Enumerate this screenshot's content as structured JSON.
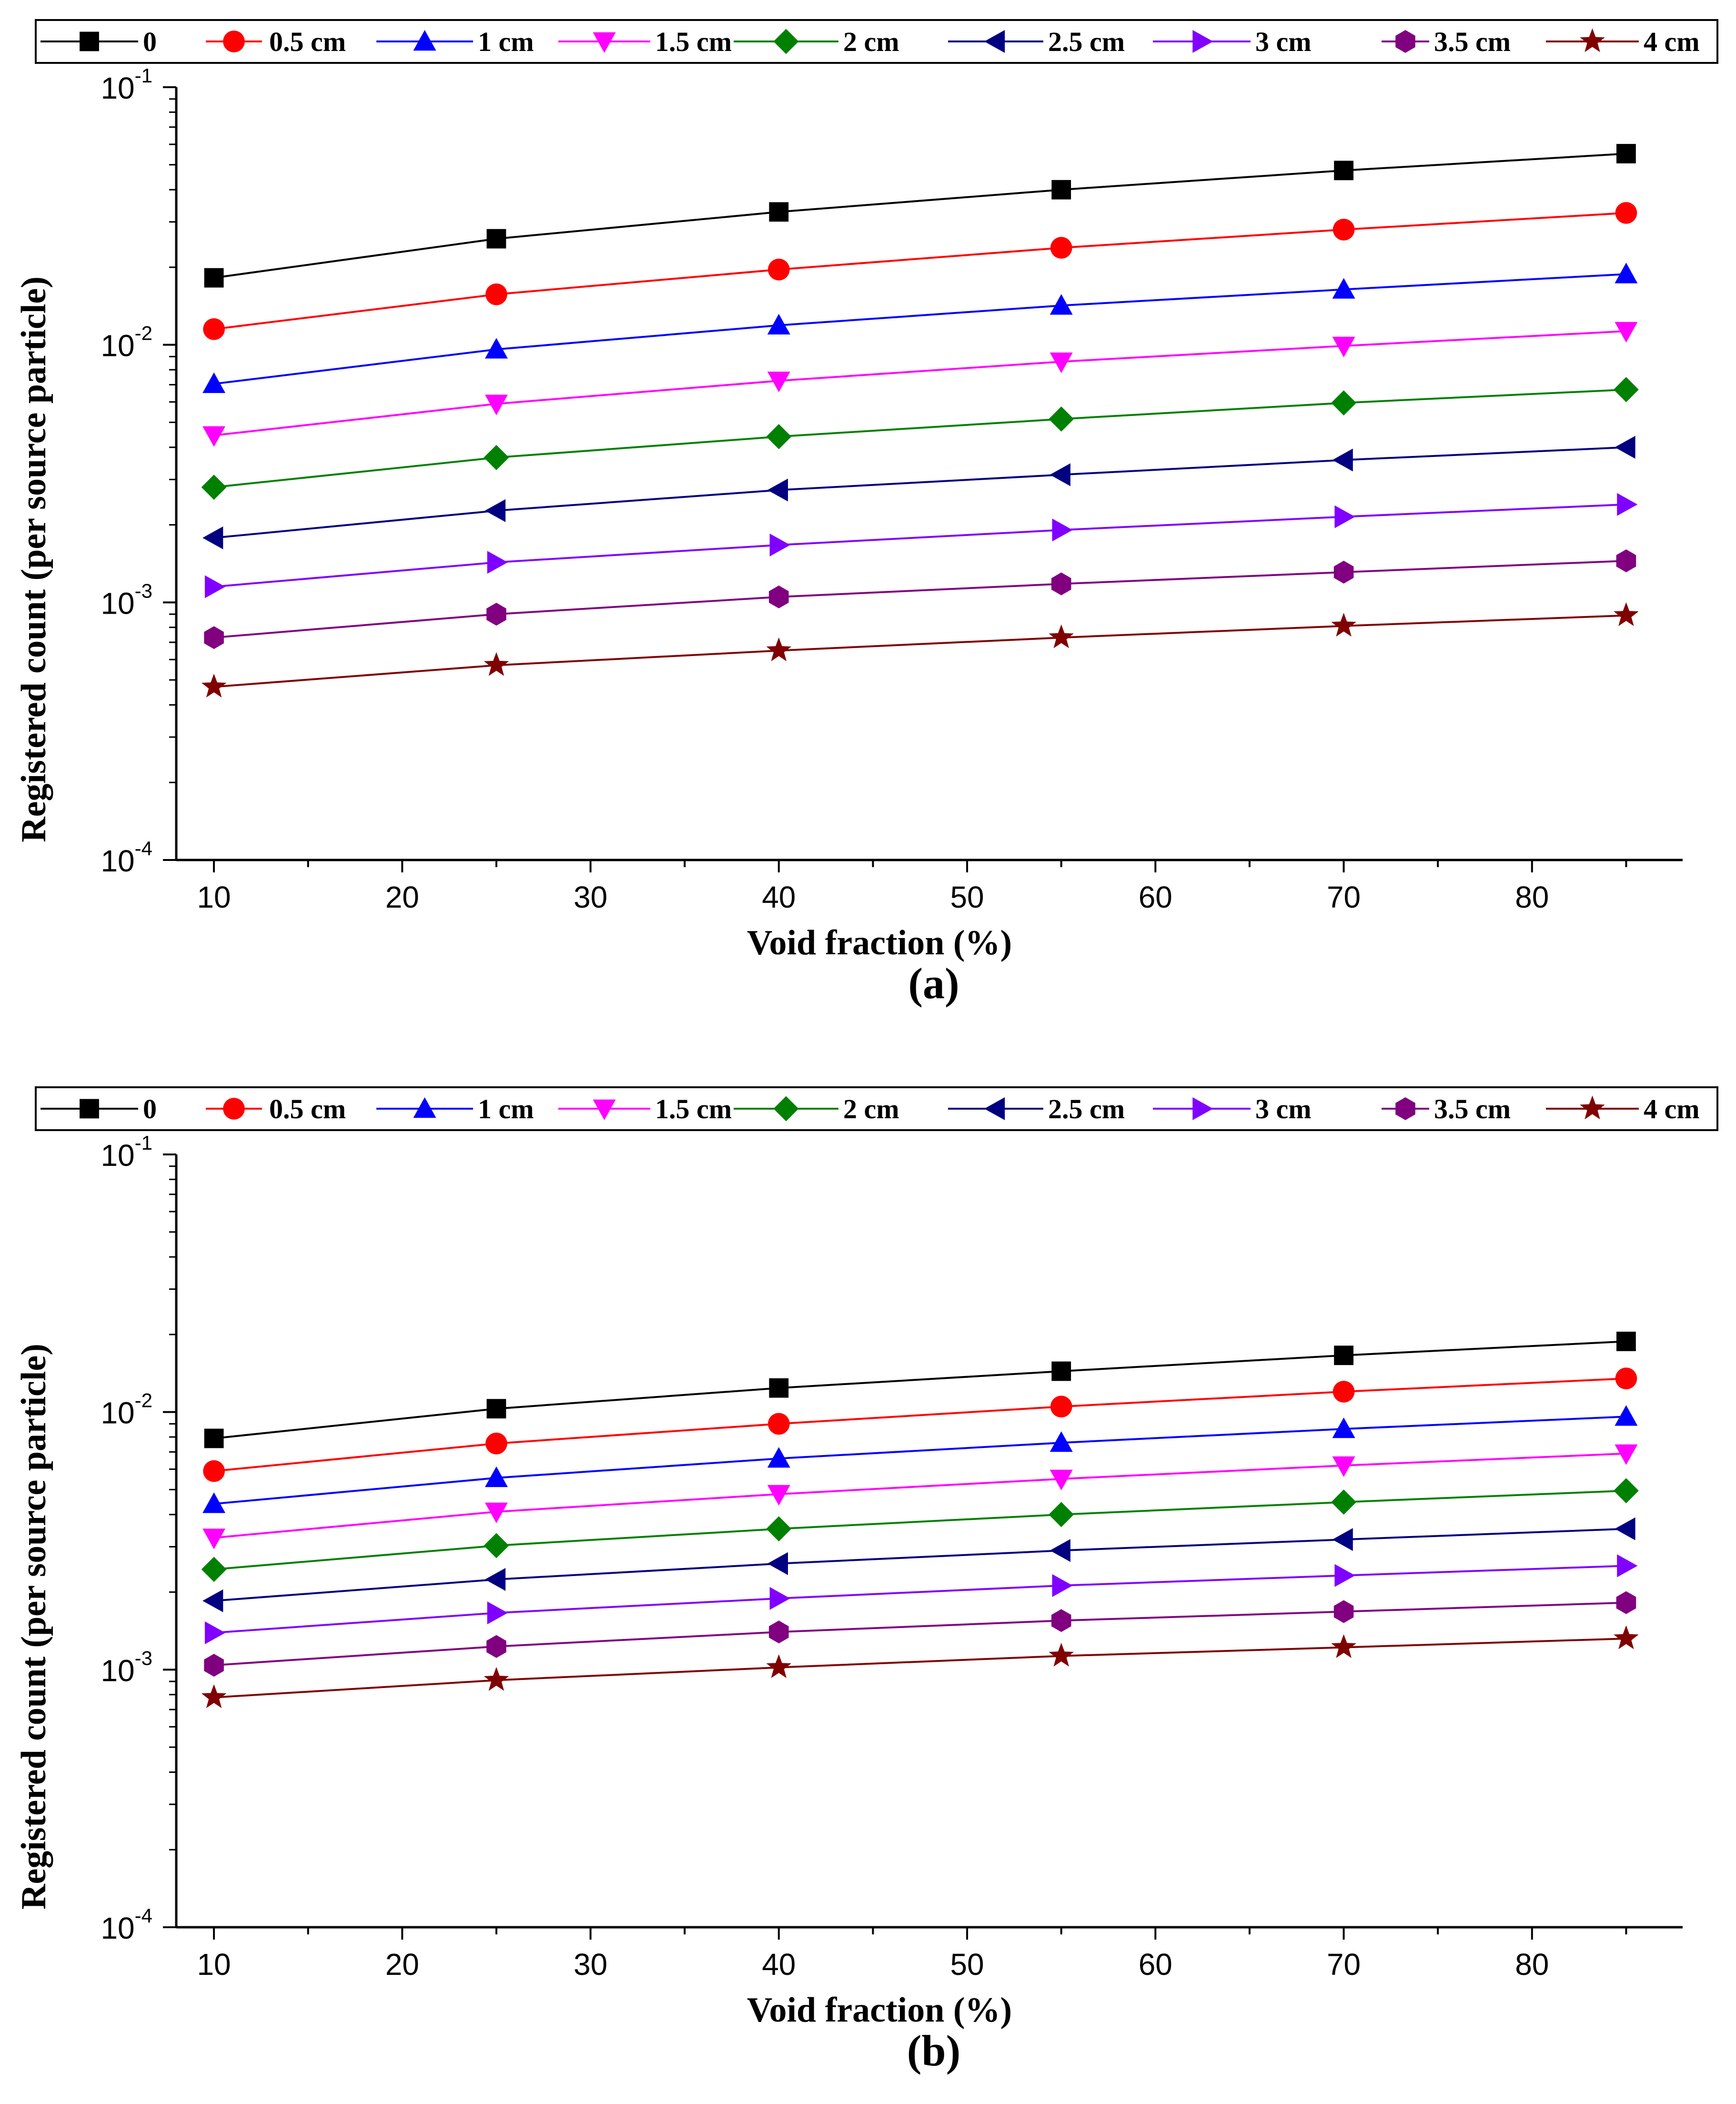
{
  "chart_data": [
    {
      "type": "line",
      "panel_label": "(a)",
      "xlabel": "Void fraction (%)",
      "ylabel": "Registered count (per source particle)",
      "x": [
        10,
        25,
        40,
        55,
        70,
        85
      ],
      "xlim": [
        8,
        88
      ],
      "xticks": [
        10,
        20,
        30,
        40,
        50,
        60,
        70,
        80
      ],
      "yscale": "log",
      "ylim": [
        0.0001,
        0.1
      ],
      "yticks": [
        {
          "mantissa": "10",
          "exponent": "-1",
          "value": 0.1
        },
        {
          "mantissa": "10",
          "exponent": "-2",
          "value": 0.01
        },
        {
          "mantissa": "10",
          "exponent": "-3",
          "value": 0.001
        },
        {
          "mantissa": "10",
          "exponent": "-4",
          "value": 0.0001
        }
      ],
      "grid": false,
      "legend_position": "top",
      "series": [
        {
          "name": "0",
          "color": "#000000",
          "marker": "square",
          "values": [
            0.0182,
            0.0258,
            0.0328,
            0.04,
            0.0475,
            0.0552
          ]
        },
        {
          "name": "0.5 cm",
          "color": "#ff0000",
          "marker": "circle",
          "values": [
            0.0115,
            0.0157,
            0.0196,
            0.0238,
            0.028,
            0.0325
          ]
        },
        {
          "name": "1 cm",
          "color": "#0000ff",
          "marker": "triangle-up",
          "values": [
            0.00705,
            0.0096,
            0.0119,
            0.0142,
            0.0164,
            0.0188
          ]
        },
        {
          "name": "1.5 cm",
          "color": "#ff00ff",
          "marker": "triangle-down",
          "values": [
            0.00445,
            0.0059,
            0.00725,
            0.0086,
            0.0099,
            0.0113
          ]
        },
        {
          "name": "2 cm",
          "color": "#008000",
          "marker": "diamond",
          "values": [
            0.0028,
            0.00365,
            0.0044,
            0.00515,
            0.00595,
            0.0067
          ]
        },
        {
          "name": "2.5 cm",
          "color": "#000080",
          "marker": "triangle-left",
          "values": [
            0.00178,
            0.00227,
            0.00273,
            0.00313,
            0.00357,
            0.004
          ]
        },
        {
          "name": "3 cm",
          "color": "#8000ff",
          "marker": "triangle-right",
          "values": [
            0.00115,
            0.00143,
            0.00167,
            0.00191,
            0.00215,
            0.0024
          ]
        },
        {
          "name": "3.5 cm",
          "color": "#800080",
          "marker": "hexagon",
          "values": [
            0.00073,
            0.0009,
            0.00105,
            0.00118,
            0.00131,
            0.00145
          ]
        },
        {
          "name": "4 cm",
          "color": "#800000",
          "marker": "star",
          "values": [
            0.00047,
            0.00057,
            0.00065,
            0.00073,
            0.00081,
            0.00089
          ]
        }
      ]
    },
    {
      "type": "line",
      "panel_label": "(b)",
      "xlabel": "Void fraction (%)",
      "ylabel": "Registered count (per source particle)",
      "x": [
        10,
        25,
        40,
        55,
        70,
        85
      ],
      "xlim": [
        8,
        88
      ],
      "xticks": [
        10,
        20,
        30,
        40,
        50,
        60,
        70,
        80
      ],
      "yscale": "log",
      "ylim": [
        0.0001,
        0.1
      ],
      "yticks": [
        {
          "mantissa": "10",
          "exponent": "-1",
          "value": 0.1
        },
        {
          "mantissa": "10",
          "exponent": "-2",
          "value": 0.01
        },
        {
          "mantissa": "10",
          "exponent": "-3",
          "value": 0.001
        },
        {
          "mantissa": "10",
          "exponent": "-4",
          "value": 0.0001
        }
      ],
      "grid": false,
      "legend_position": "top",
      "series": [
        {
          "name": "0",
          "color": "#000000",
          "marker": "square",
          "values": [
            0.0079,
            0.0103,
            0.0124,
            0.0144,
            0.0166,
            0.0188
          ]
        },
        {
          "name": "0.5 cm",
          "color": "#ff0000",
          "marker": "circle",
          "values": [
            0.0059,
            0.00755,
            0.009,
            0.0105,
            0.012,
            0.0135
          ]
        },
        {
          "name": "1 cm",
          "color": "#0000ff",
          "marker": "triangle-up",
          "values": [
            0.0044,
            0.00555,
            0.0066,
            0.0076,
            0.0086,
            0.0096
          ]
        },
        {
          "name": "1.5 cm",
          "color": "#ff00ff",
          "marker": "triangle-down",
          "values": [
            0.00325,
            0.0041,
            0.0048,
            0.0055,
            0.0062,
            0.0069
          ]
        },
        {
          "name": "2 cm",
          "color": "#008000",
          "marker": "diamond",
          "values": [
            0.00245,
            0.00303,
            0.00352,
            0.004,
            0.00447,
            0.00495
          ]
        },
        {
          "name": "2.5 cm",
          "color": "#000080",
          "marker": "triangle-left",
          "values": [
            0.00185,
            0.00224,
            0.00258,
            0.0029,
            0.0032,
            0.00352
          ]
        },
        {
          "name": "3 cm",
          "color": "#8000ff",
          "marker": "triangle-right",
          "values": [
            0.00139,
            0.00166,
            0.00189,
            0.00212,
            0.00232,
            0.00253
          ]
        },
        {
          "name": "3.5 cm",
          "color": "#800080",
          "marker": "hexagon",
          "values": [
            0.00104,
            0.00123,
            0.0014,
            0.00155,
            0.00168,
            0.00182
          ]
        },
        {
          "name": "4 cm",
          "color": "#800000",
          "marker": "star",
          "values": [
            0.00078,
            0.00091,
            0.00102,
            0.00113,
            0.00122,
            0.00132
          ]
        }
      ]
    }
  ]
}
